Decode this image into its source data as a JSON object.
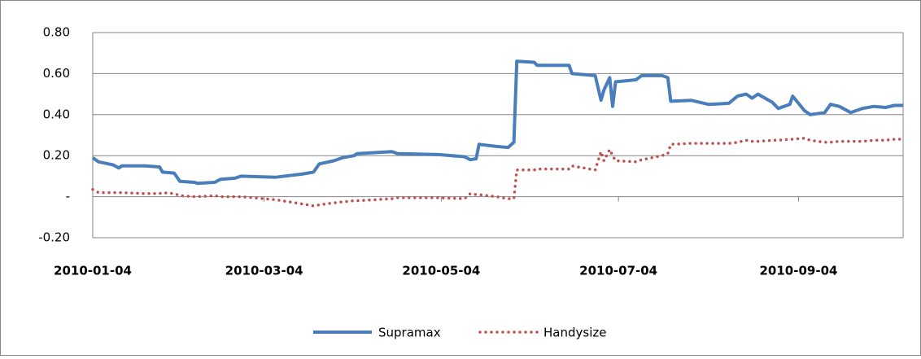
{
  "chart_data": {
    "type": "line",
    "x": [
      "2010-01-04",
      "2010-01-06",
      "2010-01-11",
      "2010-01-13",
      "2010-01-14",
      "2010-01-22",
      "2010-01-27",
      "2010-01-28",
      "2010-02-01",
      "2010-02-03",
      "2010-02-08",
      "2010-02-09",
      "2010-02-15",
      "2010-02-17",
      "2010-02-22",
      "2010-02-24",
      "2010-03-08",
      "2010-03-17",
      "2010-03-21",
      "2010-03-23",
      "2010-03-28",
      "2010-03-31",
      "2010-04-04",
      "2010-04-05",
      "2010-04-17",
      "2010-04-19",
      "2010-05-03",
      "2010-05-12",
      "2010-05-14",
      "2010-05-16",
      "2010-05-17",
      "2010-05-23",
      "2010-05-27",
      "2010-05-29",
      "2010-05-30",
      "2010-06-05",
      "2010-06-06",
      "2010-06-17",
      "2010-06-18",
      "2010-06-26",
      "2010-06-28",
      "2010-06-29",
      "2010-07-01",
      "2010-07-02",
      "2010-07-03",
      "2010-07-10",
      "2010-07-12",
      "2010-07-19",
      "2010-07-21",
      "2010-07-22",
      "2010-07-29",
      "2010-08-04",
      "2010-08-11",
      "2010-08-14",
      "2010-08-17",
      "2010-08-19",
      "2010-08-21",
      "2010-08-26",
      "2010-08-28",
      "2010-09-01",
      "2010-09-02",
      "2010-09-06",
      "2010-09-08",
      "2010-09-13",
      "2010-09-15",
      "2010-09-18",
      "2010-09-22",
      "2010-09-26",
      "2010-09-30",
      "2010-10-04",
      "2010-10-07",
      "2010-10-10"
    ],
    "series": [
      {
        "name": "Supramax",
        "color": "#4a7ebb",
        "values": [
          0.19,
          0.17,
          0.155,
          0.14,
          0.15,
          0.15,
          0.145,
          0.12,
          0.115,
          0.075,
          0.07,
          0.065,
          0.07,
          0.085,
          0.09,
          0.1,
          0.095,
          0.11,
          0.12,
          0.16,
          0.175,
          0.19,
          0.2,
          0.21,
          0.22,
          0.21,
          0.205,
          0.195,
          0.18,
          0.185,
          0.255,
          0.245,
          0.24,
          0.265,
          0.66,
          0.655,
          0.64,
          0.64,
          0.6,
          0.59,
          0.47,
          0.52,
          0.58,
          0.44,
          0.56,
          0.57,
          0.59,
          0.59,
          0.58,
          0.465,
          0.47,
          0.45,
          0.455,
          0.49,
          0.5,
          0.48,
          0.5,
          0.46,
          0.43,
          0.45,
          0.49,
          0.42,
          0.4,
          0.41,
          0.45,
          0.44,
          0.41,
          0.43,
          0.44,
          0.435,
          0.445,
          0.445
        ]
      },
      {
        "name": "Handysize",
        "color": "#c0504d",
        "values": [
          0.035,
          0.02,
          0.02,
          0.02,
          0.02,
          0.015,
          0.015,
          0.02,
          0.015,
          0.005,
          0.0,
          0.0,
          0.005,
          0.0,
          0.0,
          0.0,
          -0.015,
          -0.035,
          -0.045,
          -0.04,
          -0.03,
          -0.025,
          -0.02,
          -0.02,
          -0.01,
          -0.005,
          -0.005,
          -0.01,
          0.015,
          0.01,
          0.01,
          0.0,
          -0.01,
          -0.01,
          0.13,
          0.13,
          0.135,
          0.135,
          0.15,
          0.13,
          0.22,
          0.175,
          0.23,
          0.2,
          0.175,
          0.17,
          0.18,
          0.2,
          0.21,
          0.255,
          0.26,
          0.26,
          0.26,
          0.265,
          0.275,
          0.27,
          0.27,
          0.275,
          0.275,
          0.28,
          0.28,
          0.285,
          0.275,
          0.265,
          0.265,
          0.27,
          0.27,
          0.27,
          0.275,
          0.275,
          0.28,
          0.28
        ]
      }
    ],
    "xlim": [
      "2010-01-04",
      "2010-10-10"
    ],
    "xticks": [
      "2010-01-04",
      "2010-03-04",
      "2010-05-04",
      "2010-07-04",
      "2010-09-04"
    ],
    "ylim": [
      -0.2,
      0.8
    ],
    "yticks": [
      {
        "value": -0.2,
        "label": "-0.20"
      },
      {
        "value": 0,
        "label": "-"
      },
      {
        "value": 0.2,
        "label": "0.20"
      },
      {
        "value": 0.4,
        "label": "0.40"
      },
      {
        "value": 0.6,
        "label": "0.60"
      },
      {
        "value": 0.8,
        "label": "0.80"
      }
    ],
    "grid": true,
    "legend": "bottom"
  }
}
